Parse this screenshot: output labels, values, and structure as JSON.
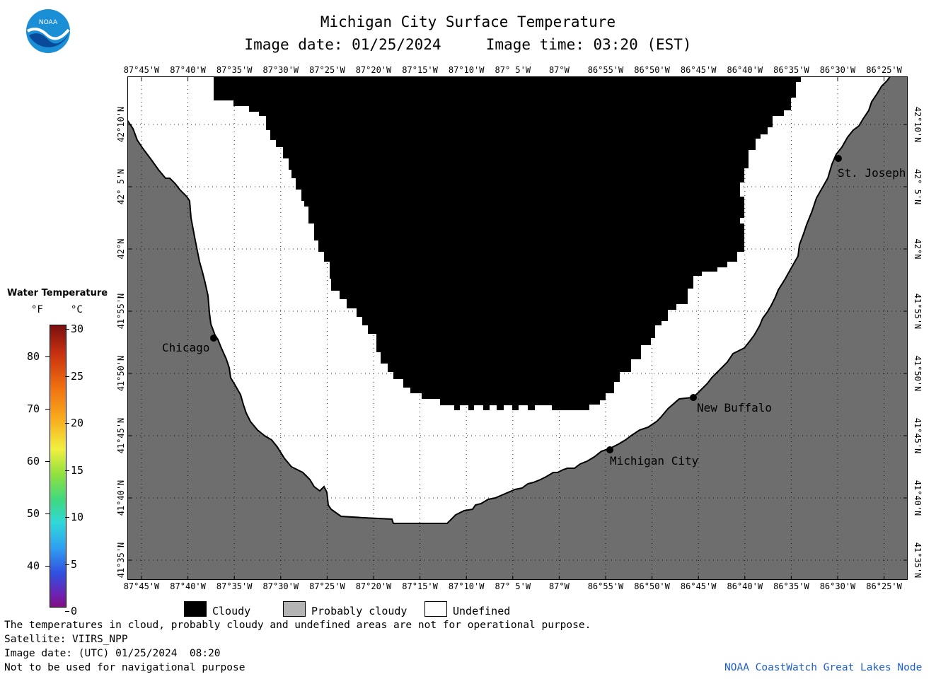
{
  "header": {
    "title": "Michigan City Surface Temperature",
    "date_time": "Image date: 01/25/2024     Image time: 03:20 (EST)"
  },
  "logo": {
    "text": "NOAA"
  },
  "map": {
    "lon_labels": [
      "87°45'W",
      "87°40'W",
      "87°35'W",
      "87°30'W",
      "87°25'W",
      "87°20'W",
      "87°15'W",
      "87°10'W",
      "87° 5'W",
      "87°W",
      "86°55'W",
      "86°50'W",
      "86°45'W",
      "86°40'W",
      "86°35'W",
      "86°30'W",
      "86°25'W"
    ],
    "lat_labels": [
      "42°10'N",
      "42° 5'N",
      "42°N",
      "41°55'N",
      "41°50'N",
      "41°45'N",
      "41°40'N",
      "41°35'N"
    ],
    "cities": [
      {
        "name": "Chicago"
      },
      {
        "name": "St. Joseph"
      },
      {
        "name": "New Buffalo"
      },
      {
        "name": "Michigan City"
      }
    ],
    "colors": {
      "land": "#6e6e6e",
      "cloud": "#000000",
      "undefined": "#ffffff",
      "probably_cloudy": "#b4b4b4"
    }
  },
  "scale": {
    "title": "Water Temperature",
    "f_unit": "°F",
    "c_unit": "°C",
    "f_ticks": [
      "80",
      "70",
      "60",
      "50",
      "40"
    ],
    "c_ticks": [
      "30",
      "25",
      "20",
      "15",
      "10",
      "5",
      "0"
    ]
  },
  "legend": {
    "items": [
      {
        "label": "Cloudy",
        "color": "#000000"
      },
      {
        "label": "Probably cloudy",
        "color": "#b4b4b4"
      },
      {
        "label": "Undefined",
        "color": "#ffffff"
      }
    ]
  },
  "footer": {
    "line1": "The temperatures in cloud, probably cloudy and undefined areas are not for operational purpose.",
    "line2": "Satellite: VIIRS_NPP",
    "line3": "Image date: (UTC) 01/25/2024  08:20",
    "line4": "Not to be used for navigational purpose",
    "credit": "NOAA CoastWatch Great Lakes Node"
  }
}
